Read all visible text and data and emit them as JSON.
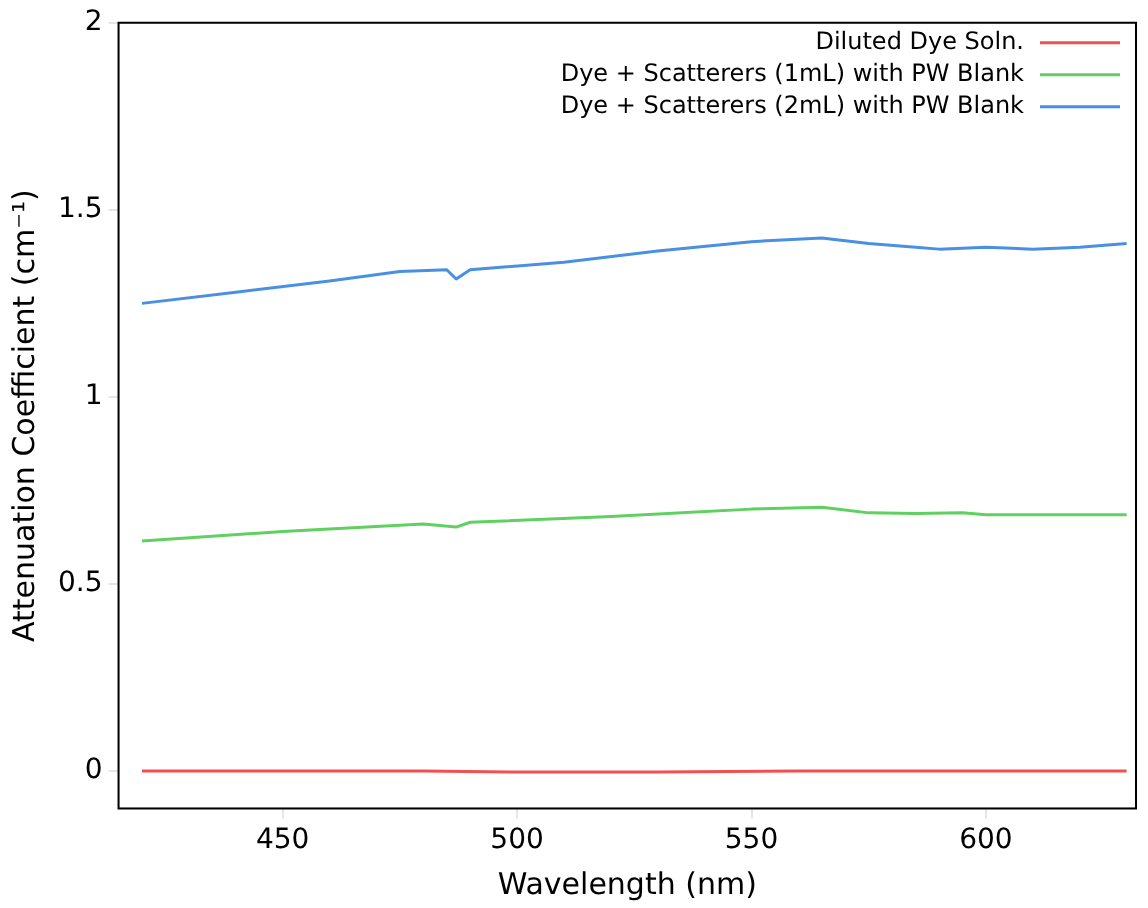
{
  "chart_data": {
    "type": "line",
    "xlabel": "Wavelength (nm)",
    "ylabel": "Attenuation Coefficient (cm⁻¹)",
    "xlim": [
      415,
      632
    ],
    "xticks": [
      450,
      500,
      550,
      600
    ],
    "ylim": [
      -0.1,
      2
    ],
    "yticks": [
      0,
      0.5,
      1,
      1.5,
      2
    ],
    "grid": false,
    "legend": "top right",
    "marker": "none",
    "line_style": "solid",
    "series": [
      {
        "name": "Diluted Dye Soln.",
        "color": "#f05050",
        "x": [
          420,
          450,
          480,
          500,
          530,
          560,
          600,
          630
        ],
        "values": [
          0,
          0,
          0,
          -0.003,
          -0.003,
          0,
          0,
          0
        ]
      },
      {
        "name": "Dye + Scatterers (1mL) with PW Blank",
        "color": "#60d060",
        "x": [
          420,
          450,
          480,
          487,
          490,
          520,
          550,
          565,
          575,
          585,
          595,
          600,
          630
        ],
        "values": [
          0.615,
          0.64,
          0.66,
          0.652,
          0.665,
          0.68,
          0.7,
          0.705,
          0.69,
          0.688,
          0.69,
          0.685,
          0.685
        ]
      },
      {
        "name": "Dye + Scatterers (2mL) with PW Blank",
        "color": "#4a90e2",
        "x": [
          420,
          440,
          460,
          475,
          485,
          487,
          490,
          510,
          530,
          550,
          565,
          575,
          585,
          590,
          600,
          610,
          620,
          630
        ],
        "values": [
          1.25,
          1.28,
          1.31,
          1.335,
          1.34,
          1.315,
          1.34,
          1.36,
          1.39,
          1.415,
          1.425,
          1.41,
          1.4,
          1.395,
          1.4,
          1.395,
          1.4,
          1.41
        ]
      }
    ]
  }
}
